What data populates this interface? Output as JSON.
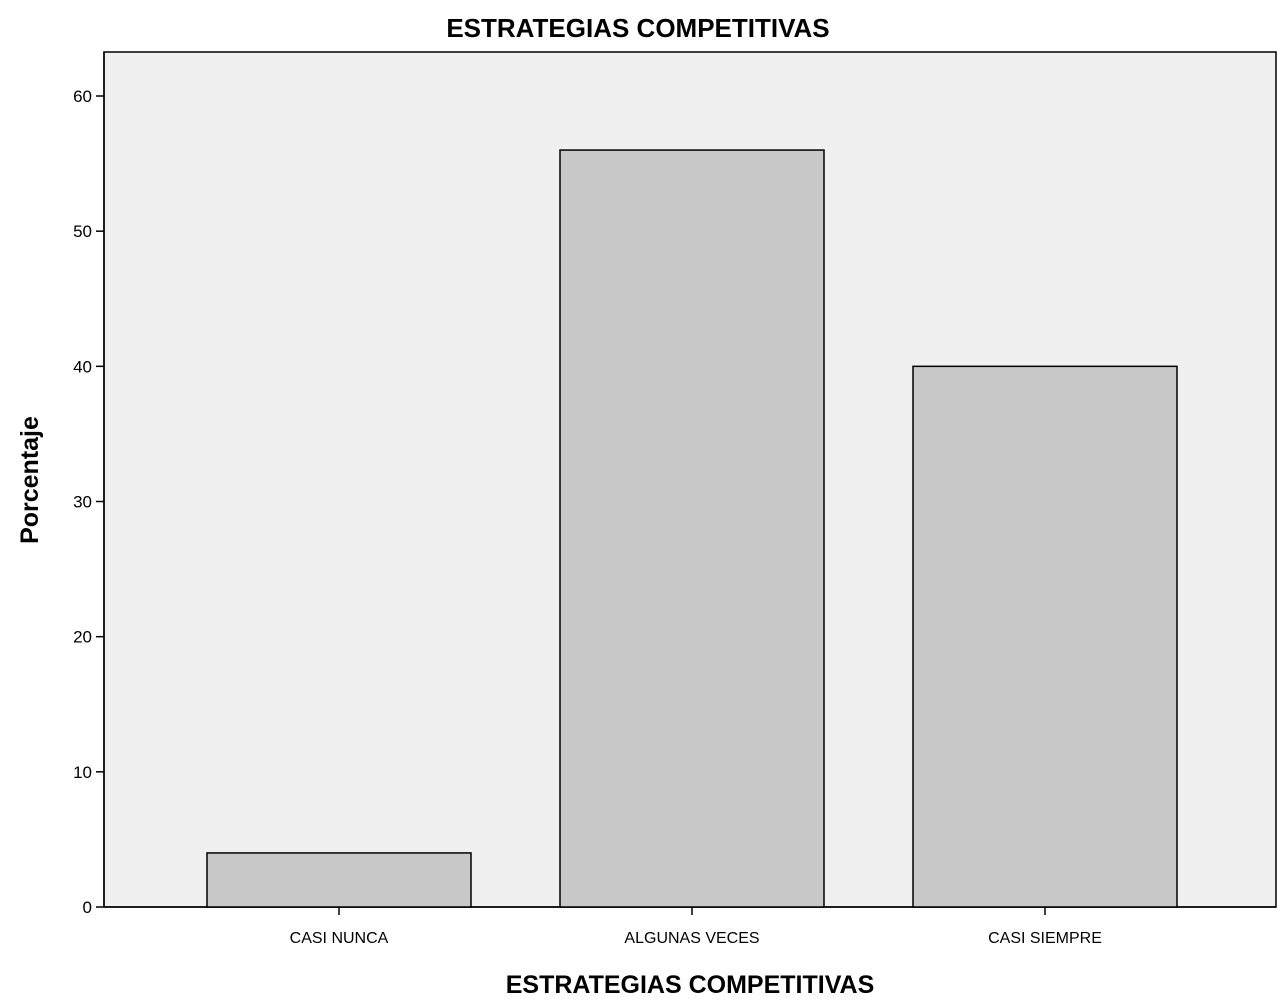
{
  "chart_data": {
    "type": "bar",
    "title": "ESTRATEGIAS COMPETITIVAS",
    "xlabel": "ESTRATEGIAS COMPETITIVAS",
    "ylabel": "Porcentaje",
    "categories": [
      "CASI NUNCA",
      "ALGUNAS VECES",
      "CASI SIEMPRE"
    ],
    "values": [
      4,
      56,
      40
    ],
    "ylim": [
      0,
      60
    ],
    "yticks": [
      "0",
      "10",
      "20",
      "30",
      "40",
      "50",
      "60"
    ],
    "grid": false,
    "legend": "none",
    "colors": {
      "plot_background": "#f0f0f0",
      "bar_fill": "#c8c8c8",
      "bar_stroke": "#000000",
      "frame": "#000000"
    }
  }
}
